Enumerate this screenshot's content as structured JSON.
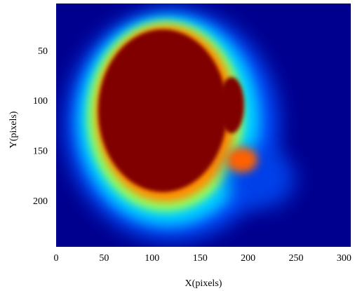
{
  "chart_data": {
    "type": "image",
    "x_label": "X(pixels)",
    "y_label": "Y(pixels)",
    "xlim": [
      0,
      307
    ],
    "xticks": [
      0,
      50,
      100,
      150,
      200,
      250,
      300
    ],
    "ylim": [
      2,
      245
    ],
    "yticks": [
      50,
      100,
      150,
      200
    ],
    "y_inverted": true,
    "grid": false
  }
}
